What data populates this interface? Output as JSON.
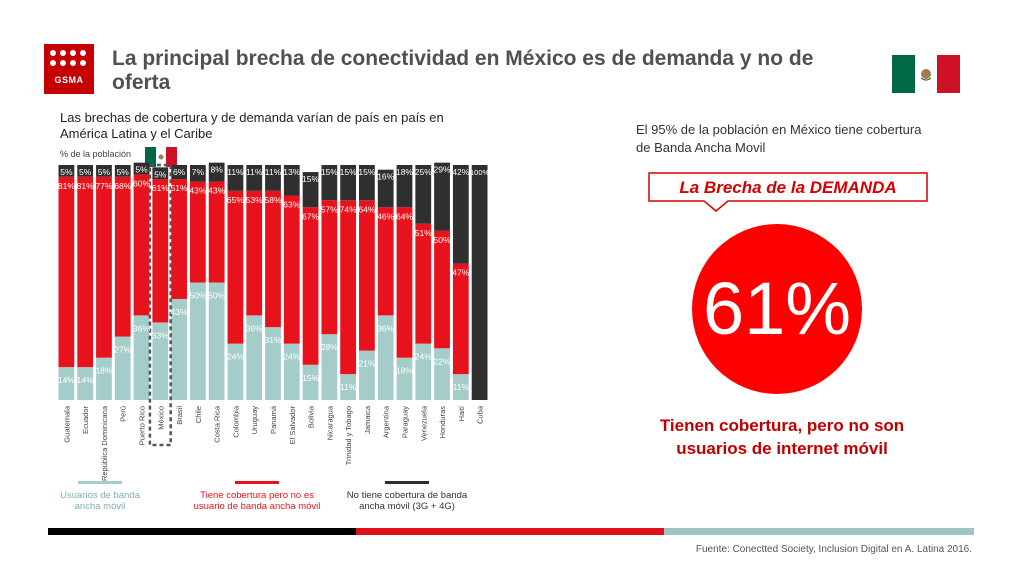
{
  "header": {
    "logo_text": "GSMA",
    "title": "La principal brecha de conectividad en México es de demanda y no de oferta"
  },
  "colors": {
    "usuarios": "#a4cdca",
    "brecha_demanda": "#e8121c",
    "sin_cobertura": "#2f2f2f",
    "accent_red": "#ff0000",
    "title_gray": "#505050",
    "bar_black": "#000000",
    "bar_red": "#e0101a",
    "bar_teal": "#9fc5c2"
  },
  "chart_data": {
    "type": "bar",
    "stacked": true,
    "title": "Las brechas de cobertura y de demanda varían de país en país en América Latina y el Caribe",
    "ylabel": "% de la población",
    "ylim": [
      0,
      100
    ],
    "highlight": "México",
    "categories": [
      "Guatemala",
      "Ecuador",
      "República Dominicana",
      "Perú",
      "Puerto Rico",
      "México",
      "Brasil",
      "Chile",
      "Costa Rica",
      "Colombia",
      "Uruguay",
      "Panamá",
      "El Salvador",
      "Bolivia",
      "Nicaragua",
      "Trinidad y Tobago",
      "Jamaica",
      "Argentina",
      "Paraguay",
      "Venezuela",
      "Honduras",
      "Haití",
      "Cuba"
    ],
    "series": [
      {
        "name": "Usuarios de banda ancha móvil",
        "values": [
          14,
          14,
          18,
          27,
          36,
          33,
          43,
          50,
          50,
          24,
          36,
          31,
          24,
          15,
          28,
          11,
          21,
          36,
          18,
          24,
          22,
          11,
          0
        ],
        "labels": [
          "14%",
          "14%",
          "18%",
          "27%",
          "36%",
          "33%",
          "43%",
          "50%",
          "50%",
          "24%",
          "36%",
          "31%",
          "24%",
          "15%",
          "28%",
          "11%",
          "21%",
          "36%",
          "18%",
          "24%",
          "22%",
          "11%",
          ""
        ]
      },
      {
        "name": "Tiene cobertura pero no es usuario de banda ancha móvil",
        "values": [
          81,
          81,
          77,
          68,
          60,
          61,
          51,
          43,
          43,
          65,
          53,
          58,
          63,
          67,
          57,
          74,
          64,
          46,
          64,
          51,
          50,
          47,
          0
        ],
        "labels": [
          "81%",
          "81%",
          "77%",
          "68%",
          "60%",
          "61%",
          "51%",
          "43%",
          "43%",
          "65%",
          "53%",
          "58%",
          "63%",
          "67%",
          "57%",
          "74%",
          "64%",
          "46%",
          "64%",
          "51%",
          "50%",
          "47%",
          ""
        ]
      },
      {
        "name": "No tiene cobertura de banda ancha móvil (3G + 4G)",
        "values": [
          5,
          5,
          5,
          5,
          5,
          5,
          6,
          7,
          8,
          11,
          11,
          11,
          13,
          15,
          15,
          15,
          15,
          16,
          18,
          25,
          29,
          42,
          100
        ],
        "labels": [
          "5%",
          "5%",
          "5%",
          "5%",
          "5%",
          "5%",
          "6%",
          "7%",
          "8%",
          "11%",
          "11%",
          "11%",
          "13%",
          "15%",
          "15%",
          "15%",
          "15%",
          "16%",
          "18%",
          "25%",
          "29%",
          "42%",
          "100%"
        ]
      }
    ]
  },
  "legend": [
    {
      "label_line1": "Usuarios de banda",
      "label_line2": "ancha móvil"
    },
    {
      "label_line1": "Tiene cobertura pero no es",
      "label_line2": "usuario de banda ancha móvil"
    },
    {
      "label_line1": "No tiene cobertura de banda",
      "label_line2": "ancha móvil (3G + 4G)"
    }
  ],
  "panel": {
    "statement": "El 95% de la población en México tiene cobertura de Banda Ancha Movil",
    "callout_label": "La Brecha de la DEMANDA",
    "big_value": "61%",
    "big_caption": "Tienen cobertura, pero no son usuarios de internet móvil"
  },
  "footer": {
    "source": "Fuente: Conectted Society, Inclusion Digital en A. Latina 2016."
  }
}
